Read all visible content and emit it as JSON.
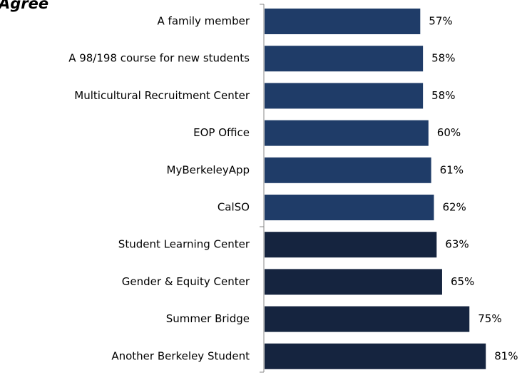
{
  "chart_data": {
    "type": "bar",
    "orientation": "horizontal",
    "title": "Agree",
    "categories": [
      "A family member",
      "A 98/198 course for new students",
      "Multicultural Recruitment Center",
      "EOP Office",
      "MyBerkeleyApp",
      "CalSO",
      "Student Learning Center",
      "Gender & Equity Center",
      "Summer Bridge",
      "Another Berkeley Student"
    ],
    "values": [
      57,
      58,
      58,
      60,
      61,
      62,
      63,
      65,
      75,
      81
    ],
    "value_labels": [
      "57%",
      "58%",
      "58%",
      "60%",
      "61%",
      "62%",
      "63%",
      "65%",
      "75%",
      "81%"
    ],
    "colors": [
      "#1f3c68",
      "#1f3c68",
      "#1f3c68",
      "#1f3c68",
      "#1f3c68",
      "#1f3c68",
      "#15243f",
      "#15243f",
      "#15243f",
      "#15243f"
    ]
  }
}
